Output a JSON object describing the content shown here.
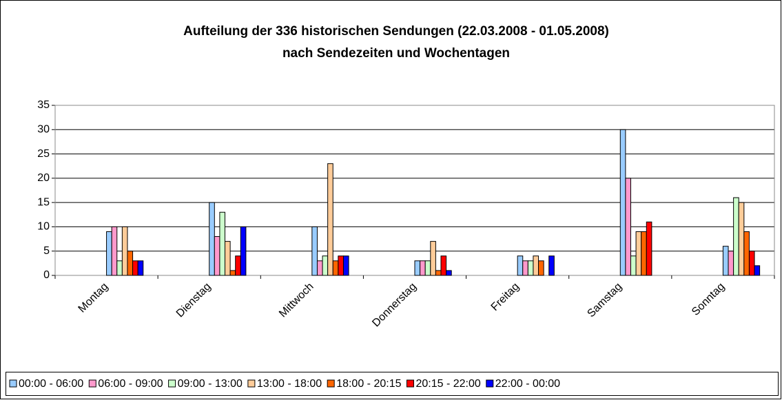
{
  "chart_data": {
    "type": "bar",
    "title": [
      "Aufteilung der 336 historischen Sendungen (22.03.2008 - 01.05.2008)",
      "nach Sendezeiten und Wochentagen"
    ],
    "categories": [
      "Montag",
      "Dienstag",
      "Mittwoch",
      "Donnerstag",
      "Freitag",
      "Samstag",
      "Sonntag"
    ],
    "series": [
      {
        "name": "00:00 - 06:00",
        "color": "#99ccff",
        "values": [
          9,
          15,
          10,
          3,
          4,
          30,
          6
        ]
      },
      {
        "name": "06:00 - 09:00",
        "color": "#ff99cc",
        "values": [
          10,
          8,
          3,
          3,
          3,
          20,
          5
        ]
      },
      {
        "name": "09:00 - 13:00",
        "color": "#ccffcc",
        "values": [
          3,
          13,
          4,
          3,
          3,
          4,
          16
        ]
      },
      {
        "name": "13:00 - 18:00",
        "color": "#ffcc99",
        "values": [
          10,
          7,
          23,
          7,
          4,
          9,
          15
        ]
      },
      {
        "name": "18:00 - 20:15",
        "color": "#ff6600",
        "values": [
          5,
          1,
          3,
          1,
          3,
          9,
          9
        ]
      },
      {
        "name": "20:15 - 22:00",
        "color": "#ff0000",
        "values": [
          3,
          4,
          4,
          4,
          0,
          11,
          5
        ]
      },
      {
        "name": "22:00 - 00:00",
        "color": "#0000ff",
        "values": [
          3,
          10,
          4,
          1,
          4,
          0,
          2
        ]
      }
    ],
    "ylim": [
      0,
      35
    ],
    "yticks": [
      0,
      5,
      10,
      15,
      20,
      25,
      30,
      35
    ],
    "grid": true,
    "legend": "bottom"
  }
}
